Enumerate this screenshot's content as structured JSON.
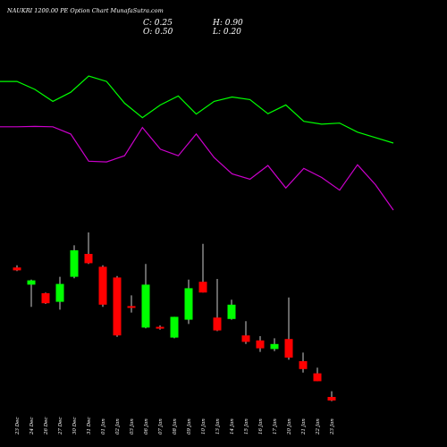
{
  "chart_data": {
    "type": "candlestick",
    "title": "NAUKRI 1200.00  PE Option  Chart MunafaSutra.com",
    "ohlc_labels": {
      "c": "C: 0.25",
      "h": "H: 0.90",
      "o": "O: 0.50",
      "l": "L: 0.20"
    },
    "colors": {
      "background": "#000000",
      "up": "#00ff00",
      "down": "#ff0000",
      "wick": "#ffffff",
      "line1": "#00ff00",
      "line2": "#cc00cc",
      "text": "#ffffff"
    },
    "categories": [
      "23 Dec",
      "24 Dec",
      "26 Dec",
      "27 Dec",
      "30 Dec",
      "31 Dec",
      "01 Jan",
      "02 Jan",
      "03 Jan",
      "06 Jan",
      "07 Jan",
      "08 Jan",
      "09 Jan",
      "10 Jan",
      "13 Jan",
      "14 Jan",
      "15 Jan",
      "16 Jan",
      "17 Jan",
      "20 Jan",
      "21 Jan",
      "22 Jan",
      "23 Jan"
    ],
    "y_range": [
      0,
      12
    ],
    "candles": [
      {
        "open": 9.55,
        "high": 9.7,
        "low": 9.3,
        "close": 9.35
      },
      {
        "open": 8.35,
        "high": 8.7,
        "low": 6.8,
        "close": 8.65
      },
      {
        "open": 7.75,
        "high": 7.8,
        "low": 7.0,
        "close": 7.05
      },
      {
        "open": 7.15,
        "high": 8.9,
        "low": 6.6,
        "close": 8.4
      },
      {
        "open": 8.9,
        "high": 11.1,
        "low": 8.8,
        "close": 10.75
      },
      {
        "open": 10.5,
        "high": 12.0,
        "low": 9.8,
        "close": 9.85
      },
      {
        "open": 9.6,
        "high": 9.7,
        "low": 6.8,
        "close": 6.95
      },
      {
        "open": 8.85,
        "high": 8.95,
        "low": 4.7,
        "close": 4.8
      },
      {
        "open": 6.85,
        "high": 7.6,
        "low": 6.4,
        "close": 6.75
      },
      {
        "open": 5.35,
        "high": 9.8,
        "low": 5.3,
        "close": 8.35
      },
      {
        "open": 5.4,
        "high": 5.5,
        "low": 5.2,
        "close": 5.3
      },
      {
        "open": 4.65,
        "high": 6.1,
        "low": 4.6,
        "close": 6.1
      },
      {
        "open": 5.9,
        "high": 8.7,
        "low": 5.6,
        "close": 8.1
      },
      {
        "open": 8.55,
        "high": 11.2,
        "low": 7.8,
        "close": 7.8
      },
      {
        "open": 6.05,
        "high": 8.75,
        "low": 5.1,
        "close": 5.15
      },
      {
        "open": 5.95,
        "high": 7.3,
        "low": 5.9,
        "close": 6.95
      },
      {
        "open": 4.8,
        "high": 5.8,
        "low": 4.2,
        "close": 4.35
      },
      {
        "open": 4.45,
        "high": 4.75,
        "low": 3.65,
        "close": 3.9
      },
      {
        "open": 3.85,
        "high": 4.6,
        "low": 3.7,
        "close": 4.2
      },
      {
        "open": 4.55,
        "high": 7.45,
        "low": 3.1,
        "close": 3.25
      },
      {
        "open": 3.0,
        "high": 3.6,
        "low": 2.2,
        "close": 2.45
      },
      {
        "open": 2.15,
        "high": 2.55,
        "low": 1.6,
        "close": 1.6
      },
      {
        "open": 0.5,
        "high": 0.9,
        "low": 0.2,
        "close": 0.25
      }
    ],
    "lines": [
      {
        "values": [
          7.9,
          7.9,
          7.68,
          7.35,
          7.6,
          8.05,
          7.9,
          7.3,
          6.9,
          7.25,
          7.5,
          7.0,
          7.35,
          7.47,
          7.4,
          7.01,
          7.25,
          6.8,
          6.72,
          6.75,
          6.5,
          6.35,
          6.2
        ]
      },
      {
        "values": [
          6.65,
          6.65,
          6.66,
          6.65,
          6.45,
          5.7,
          5.68,
          5.85,
          6.63,
          6.03,
          5.85,
          6.45,
          5.8,
          5.35,
          5.2,
          5.58,
          4.96,
          5.5,
          5.25,
          4.9,
          5.6,
          5.05,
          4.35
        ]
      }
    ]
  }
}
